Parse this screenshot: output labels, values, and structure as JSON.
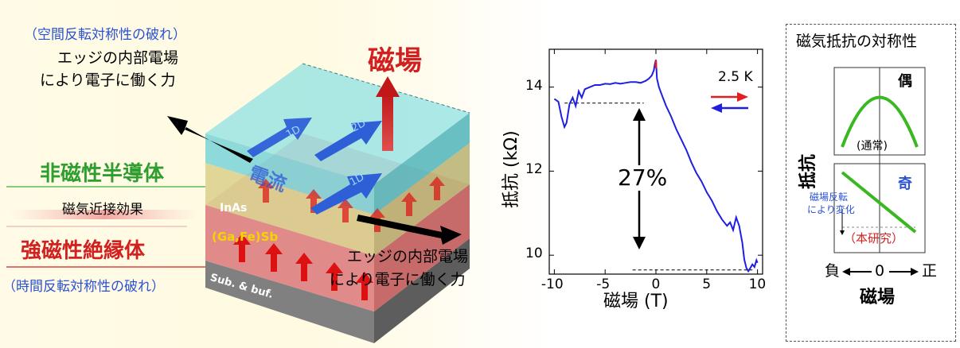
{
  "left": {
    "symmetry_breaking_space": "（空間反転対称性の破れ）",
    "edge_field_top_line1": "エッジの内部電場",
    "edge_field_top_line2": "により電子に働く力",
    "magnetic_field": "磁場",
    "nonmagnetic_semiconductor": "非磁性半導体",
    "proximity_effect": "磁気近接効果",
    "ferromagnetic_insulator": "強磁性絶縁体",
    "symmetry_breaking_time": "（時間反転対称性の破れ）",
    "edge_field_bottom_line1": "エッジの内部電場",
    "edge_field_bottom_line2": "により電子に働く力",
    "layer_inas": "InAs",
    "layer_gafesb": "(Ga,Fe)Sb",
    "layer_sub": "Sub. & buf.",
    "current_label": "電流",
    "arrow_1d_a": "1D",
    "arrow_2d": "2D",
    "arrow_1d_b": "1D"
  },
  "chart_data": {
    "type": "line",
    "xlabel": "磁場 (T)",
    "ylabel": "抵抗 (kΩ)",
    "xlim": [
      -10.5,
      10.5
    ],
    "ylim": [
      9.55,
      14.9
    ],
    "xticks": [
      -10,
      -5,
      0,
      5,
      10
    ],
    "yticks": [
      10,
      12,
      14
    ],
    "temperature": "2.5 K",
    "annotation": "27%",
    "reference_levels": [
      13.62,
      9.65
    ],
    "series": [
      {
        "color": "#1f1fe0",
        "x": [
          -10,
          -9.6,
          -9.3,
          -9.0,
          -8.8,
          -8.5,
          -8.2,
          -7.9,
          -7.6,
          -7.3,
          -7.0,
          -6.5,
          -6.0,
          -5.5,
          -5.0,
          -4.5,
          -4.0,
          -3.5,
          -3.0,
          -2.5,
          -2.0,
          -1.5,
          -1.0,
          -0.7,
          -0.4,
          -0.2,
          -0.1,
          0,
          0.1,
          0.3,
          0.6,
          1.0,
          1.5,
          2.0,
          2.5,
          3.0,
          3.5,
          4.0,
          4.5,
          5.0,
          5.5,
          6.0,
          6.5,
          7.0,
          7.3,
          7.6,
          7.9,
          8.2,
          8.5,
          8.7,
          8.9,
          9.1,
          9.3,
          9.5,
          9.7,
          9.9,
          10
        ],
        "y": [
          13.72,
          13.65,
          13.3,
          13.05,
          13.15,
          13.6,
          13.75,
          13.55,
          13.9,
          13.75,
          13.95,
          14.0,
          14.05,
          14.05,
          14.08,
          14.07,
          14.1,
          14.08,
          14.1,
          14.12,
          14.12,
          14.1,
          14.15,
          14.2,
          14.28,
          14.4,
          14.55,
          14.65,
          14.2,
          14.0,
          13.8,
          13.55,
          13.3,
          13.0,
          12.75,
          12.5,
          12.2,
          11.95,
          11.75,
          11.5,
          11.3,
          11.05,
          10.85,
          10.7,
          10.78,
          10.6,
          10.9,
          10.7,
          10.3,
          9.9,
          9.7,
          9.62,
          9.7,
          9.78,
          9.72,
          9.88,
          9.82
        ]
      },
      {
        "color": "#e02020",
        "x": [
          -0.05,
          0,
          0.05
        ],
        "y": [
          14.45,
          14.65,
          14.45
        ]
      }
    ]
  },
  "panel": {
    "title": "磁気抵抗の対称性",
    "ylabel": "抵抗",
    "xlabel": "磁場",
    "neg": "負",
    "zero": "0",
    "pos": "正",
    "even_label": "偶",
    "even_note": "(通常)",
    "odd_label": "奇",
    "odd_note1": "磁場反転",
    "odd_note2": "により変化",
    "this_work": "（本研究）"
  }
}
